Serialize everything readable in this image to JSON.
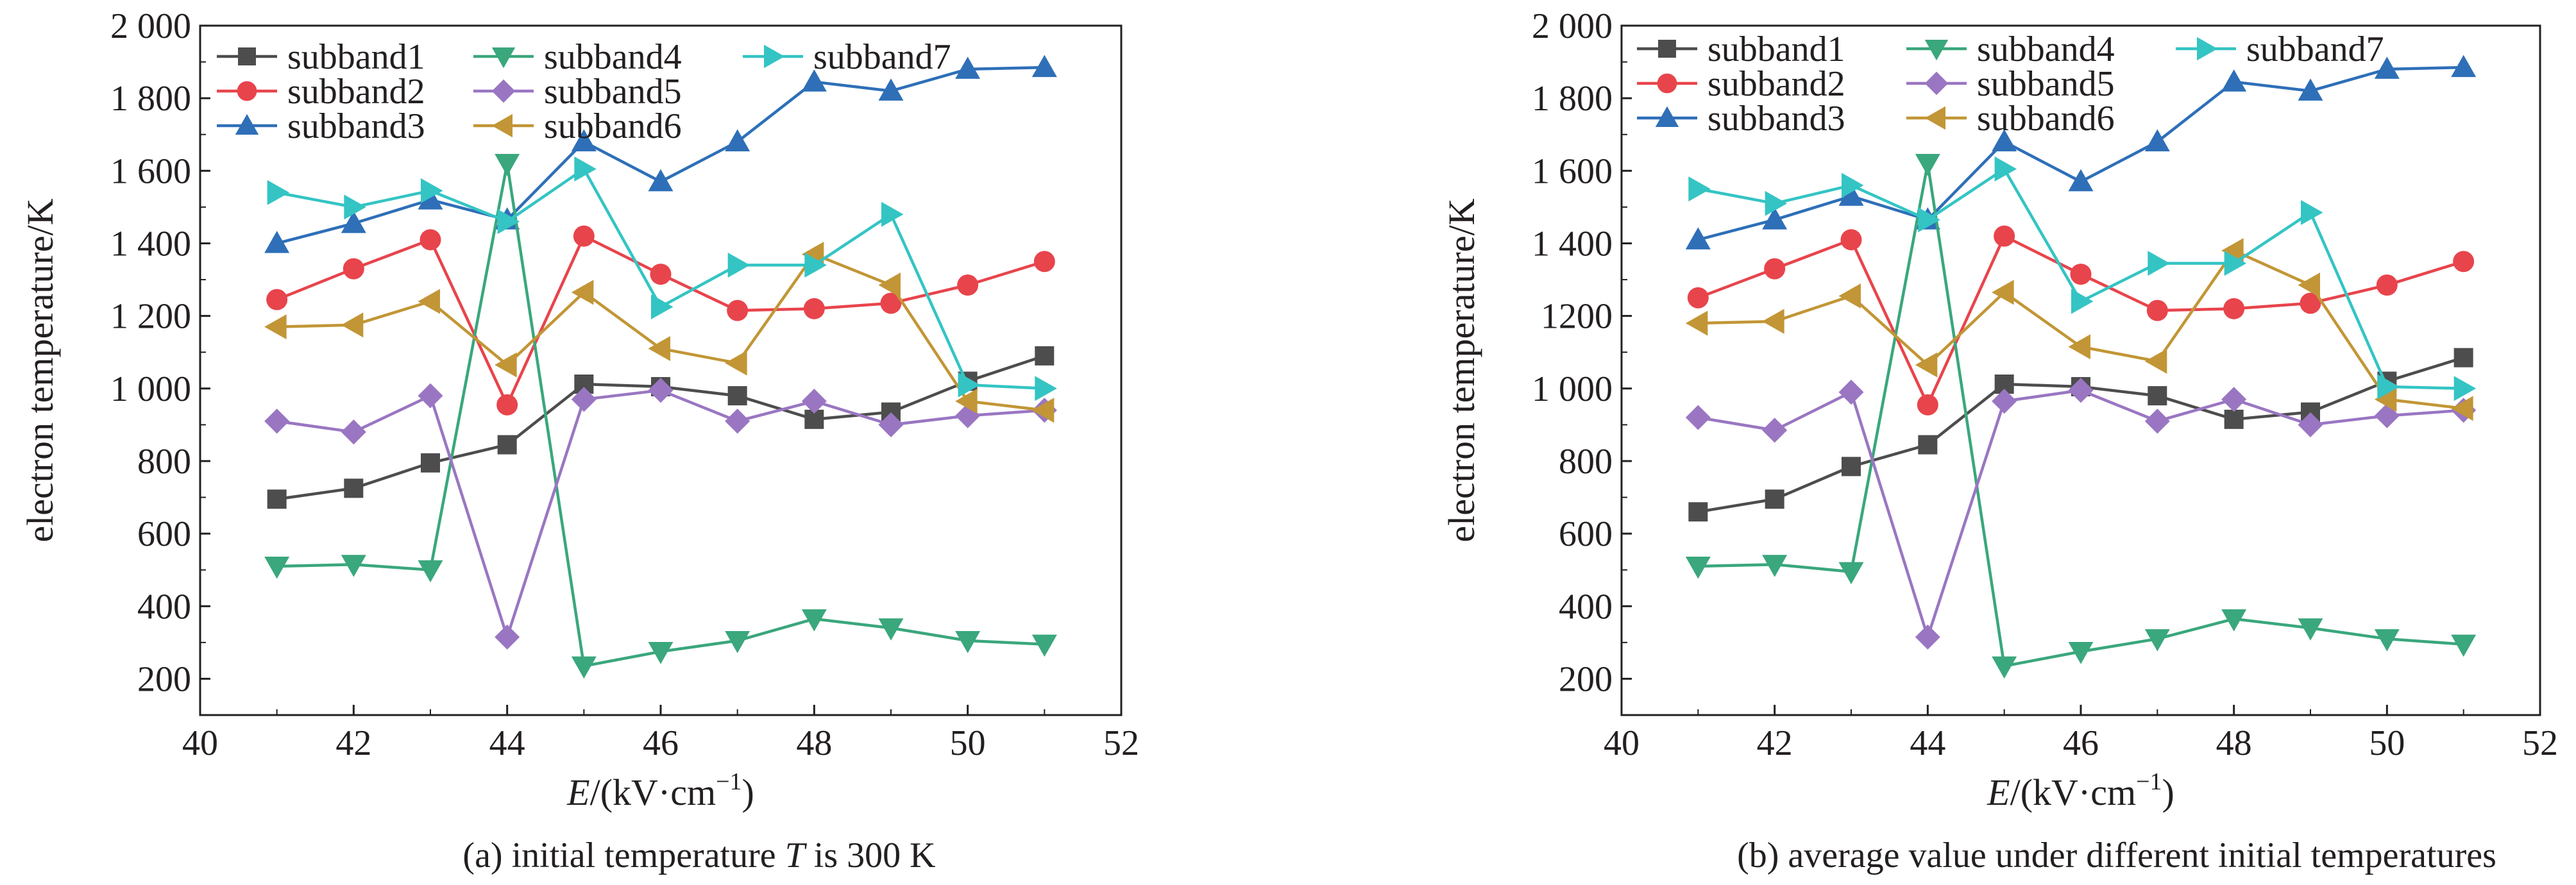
{
  "figure": {
    "panels": [
      {
        "caption_prefix": "(a) initial temperature ",
        "caption_var": "T",
        "caption_suffix": " is 300 K"
      },
      {
        "caption_prefix": "(b) average value under different initial temperatures",
        "caption_var": "",
        "caption_suffix": ""
      }
    ]
  },
  "colors": {
    "subband1": "#4d4d4d",
    "subband2": "#e8444c",
    "subband3": "#2e6fb8",
    "subband4": "#3aa77c",
    "subband5": "#9a76c2",
    "subband6": "#c29636",
    "subband7": "#34c4c4",
    "axis": "#231f20"
  },
  "chart_data": [
    {
      "type": "line",
      "xlabel_var": "E",
      "xlabel_unit": "/(kV·cm",
      "xlabel_sup": "−1",
      "xlabel_close": ")",
      "ylabel": "electron temperature/K",
      "xlim": [
        40,
        52
      ],
      "ylim": [
        100,
        2000
      ],
      "xticks": [
        40,
        42,
        44,
        46,
        48,
        50,
        52
      ],
      "yticks": [
        200,
        400,
        600,
        800,
        1000,
        1200,
        1400,
        1600,
        1800,
        2000
      ],
      "ytick_labels": [
        "200",
        "400",
        "600",
        "800",
        "1 000",
        "1 200",
        "1 400",
        "1 600",
        "1 800",
        "2 000"
      ],
      "legend": "top-left",
      "x": [
        41,
        42,
        43,
        44,
        45,
        46,
        47,
        48,
        49,
        50,
        51
      ],
      "series": [
        {
          "name": "subband1",
          "marker": "square",
          "values": [
            695,
            725,
            795,
            845,
            1012,
            1005,
            980,
            915,
            935,
            1020,
            1090
          ]
        },
        {
          "name": "subband2",
          "marker": "circle",
          "values": [
            1245,
            1330,
            1410,
            955,
            1420,
            1315,
            1215,
            1220,
            1235,
            1285,
            1350
          ]
        },
        {
          "name": "subband3",
          "marker": "triangle-up",
          "values": [
            1400,
            1455,
            1520,
            1465,
            1680,
            1570,
            1680,
            1845,
            1820,
            1880,
            1885
          ]
        },
        {
          "name": "subband4",
          "marker": "triangle-down",
          "values": [
            510,
            515,
            500,
            1620,
            235,
            275,
            305,
            365,
            340,
            305,
            295
          ]
        },
        {
          "name": "subband5",
          "marker": "diamond",
          "values": [
            910,
            880,
            980,
            315,
            970,
            995,
            910,
            965,
            900,
            925,
            940
          ]
        },
        {
          "name": "subband6",
          "marker": "triangle-left",
          "values": [
            1170,
            1175,
            1240,
            1065,
            1265,
            1110,
            1070,
            1370,
            1285,
            965,
            940
          ]
        },
        {
          "name": "subband7",
          "marker": "triangle-right",
          "values": [
            1540,
            1500,
            1545,
            1460,
            1605,
            1225,
            1340,
            1340,
            1480,
            1010,
            1000
          ]
        }
      ]
    },
    {
      "type": "line",
      "xlabel_var": "E",
      "xlabel_unit": "/(kV·cm",
      "xlabel_sup": "−1",
      "xlabel_close": ")",
      "ylabel": "electron temperature/K",
      "xlim": [
        40,
        52
      ],
      "ylim": [
        100,
        2000
      ],
      "xticks": [
        40,
        42,
        44,
        46,
        48,
        50,
        52
      ],
      "yticks": [
        200,
        400,
        600,
        800,
        1000,
        1200,
        1400,
        1600,
        1800,
        2000
      ],
      "ytick_labels": [
        "200",
        "400",
        "600",
        "800",
        "1 000",
        "1200",
        "1 400",
        "1 600",
        "1 800",
        "2 000"
      ],
      "legend": "top-left",
      "x": [
        41,
        42,
        43,
        44,
        45,
        46,
        47,
        48,
        49,
        50,
        51
      ],
      "series": [
        {
          "name": "subband1",
          "marker": "square",
          "values": [
            660,
            695,
            785,
            845,
            1012,
            1005,
            980,
            915,
            935,
            1020,
            1085
          ]
        },
        {
          "name": "subband2",
          "marker": "circle",
          "values": [
            1250,
            1330,
            1410,
            955,
            1420,
            1315,
            1215,
            1220,
            1235,
            1285,
            1350
          ]
        },
        {
          "name": "subband3",
          "marker": "triangle-up",
          "values": [
            1410,
            1465,
            1530,
            1465,
            1680,
            1570,
            1680,
            1845,
            1820,
            1880,
            1885
          ]
        },
        {
          "name": "subband4",
          "marker": "triangle-down",
          "values": [
            510,
            515,
            495,
            1620,
            235,
            275,
            310,
            365,
            340,
            310,
            295
          ]
        },
        {
          "name": "subband5",
          "marker": "diamond",
          "values": [
            920,
            885,
            990,
            315,
            965,
            995,
            910,
            970,
            900,
            925,
            940
          ]
        },
        {
          "name": "subband6",
          "marker": "triangle-left",
          "values": [
            1180,
            1185,
            1255,
            1065,
            1265,
            1115,
            1075,
            1380,
            1285,
            970,
            945
          ]
        },
        {
          "name": "subband7",
          "marker": "triangle-right",
          "values": [
            1550,
            1510,
            1560,
            1465,
            1605,
            1240,
            1345,
            1345,
            1485,
            1005,
            1000
          ]
        }
      ]
    }
  ]
}
